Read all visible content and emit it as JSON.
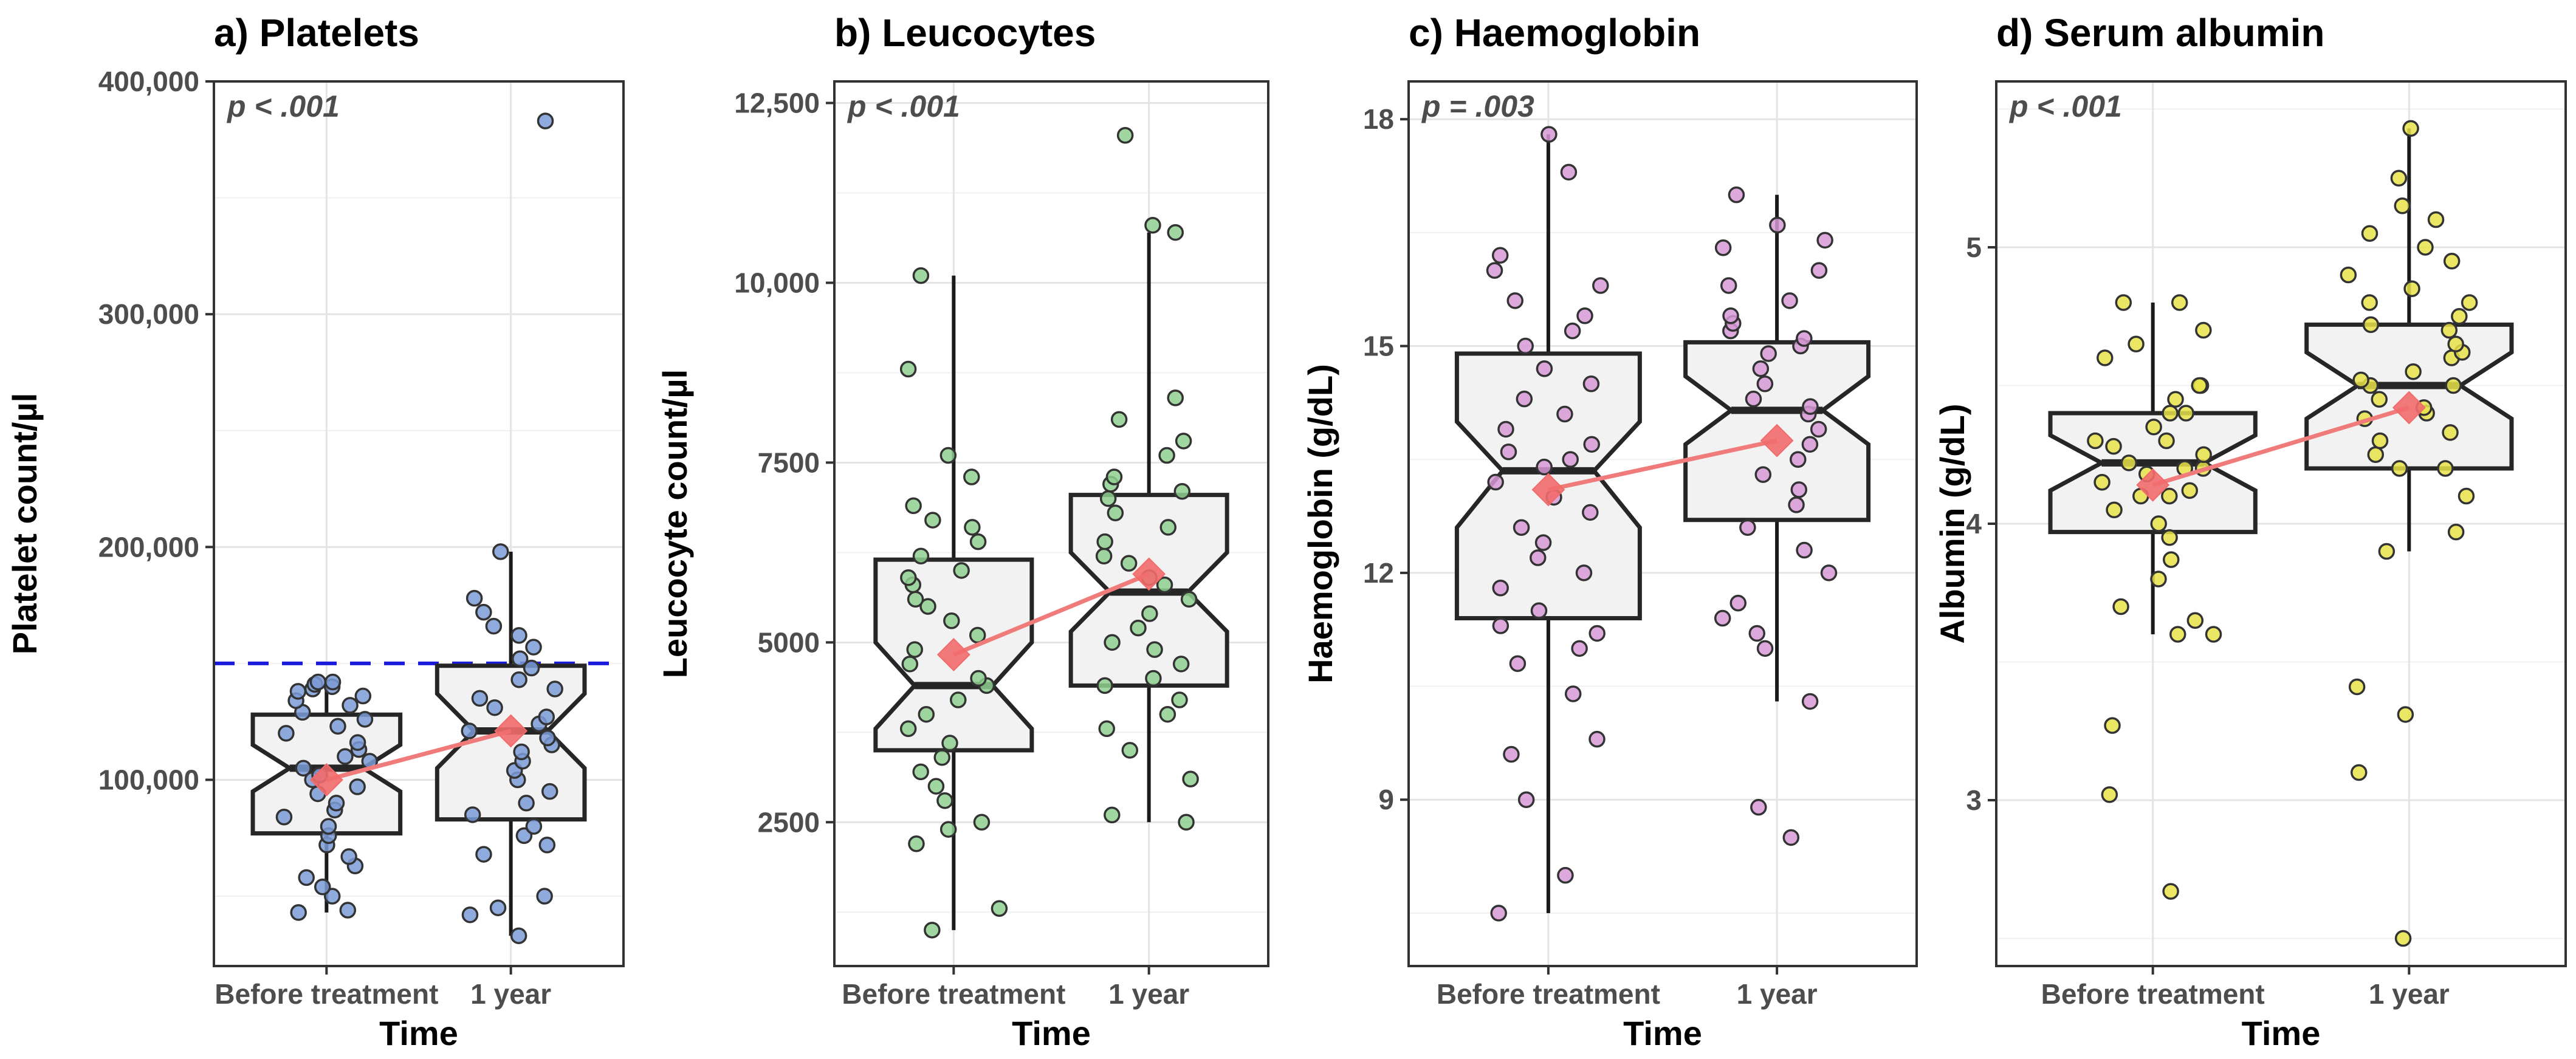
{
  "chart_data": [
    {
      "type": "boxplot",
      "title": "a) Platelets",
      "ylabel": "Platelet count/µl",
      "xlabel": "Time",
      "annotation": "p < .001",
      "categories": [
        "Before treatment",
        "1 year"
      ],
      "ylim": [
        20000,
        400000
      ],
      "yticks": [
        100000,
        200000,
        300000,
        400000
      ],
      "ytick_labels": [
        "100,000",
        "200,000",
        "300,000",
        "400,000"
      ],
      "reference_line": 150000,
      "reference_color": "#1a1adb",
      "point_color": "#7b9bd6",
      "boxes": [
        {
          "q1": 77000,
          "median": 105000,
          "q3": 128000,
          "notch_low": 95000,
          "notch_high": 115000,
          "whisker_low": 43000,
          "whisker_high": 142000,
          "mean": 100000
        },
        {
          "q1": 83000,
          "median": 121000,
          "q3": 149000,
          "notch_low": 105000,
          "notch_high": 137000,
          "whisker_low": 33000,
          "whisker_high": 198000,
          "mean": 121000
        }
      ],
      "points": [
        [
          43000,
          44000,
          50000,
          54000,
          58000,
          63000,
          67000,
          72000,
          76000,
          80000,
          84000,
          87000,
          90000,
          94000,
          97000,
          100000,
          102000,
          105000,
          108000,
          110000,
          113000,
          116000,
          120000,
          123000,
          126000,
          129000,
          132000,
          134000,
          136000,
          138000,
          139000,
          140000,
          141000,
          142000,
          142000
        ],
        [
          33000,
          42000,
          45000,
          50000,
          68000,
          72000,
          76000,
          80000,
          85000,
          90000,
          95000,
          100000,
          104000,
          108000,
          112000,
          115000,
          118000,
          121000,
          124000,
          127000,
          131000,
          135000,
          139000,
          143000,
          148000,
          152000,
          157000,
          162000,
          166000,
          172000,
          178000,
          198000,
          383000
        ]
      ]
    },
    {
      "type": "boxplot",
      "title": "b) Leucocytes",
      "ylabel": "Leucocyte count/µl",
      "xlabel": "Time",
      "annotation": "p < .001",
      "categories": [
        "Before treatment",
        "1 year"
      ],
      "ylim": [
        500,
        12800
      ],
      "yticks": [
        2500,
        5000,
        7500,
        10000,
        12500
      ],
      "ytick_labels": [
        "2500",
        "5000",
        "7500",
        "10,000",
        "12,500"
      ],
      "point_color": "#8fd08f",
      "boxes": [
        {
          "q1": 3500,
          "median": 4400,
          "q3": 6150,
          "notch_low": 3800,
          "notch_high": 5000,
          "whisker_low": 1000,
          "whisker_high": 10100,
          "mean": 4830
        },
        {
          "q1": 4400,
          "median": 5700,
          "q3": 7050,
          "notch_low": 5150,
          "notch_high": 6250,
          "whisker_low": 2500,
          "whisker_high": 10700,
          "mean": 5950
        }
      ],
      "points": [
        [
          1000,
          1300,
          2200,
          2400,
          2500,
          2800,
          3000,
          3200,
          3400,
          3600,
          3800,
          4000,
          4200,
          4400,
          4500,
          4700,
          4900,
          5100,
          5300,
          5500,
          5600,
          5800,
          5900,
          6000,
          6200,
          6400,
          6600,
          6700,
          6900,
          7300,
          7600,
          8800,
          10100
        ],
        [
          2500,
          2600,
          3100,
          3500,
          3800,
          4000,
          4200,
          4400,
          4500,
          4700,
          4900,
          5000,
          5200,
          5400,
          5600,
          5800,
          5900,
          6100,
          6200,
          6400,
          6600,
          6800,
          7000,
          7100,
          7200,
          7300,
          7600,
          7800,
          8100,
          8400,
          10700,
          10800,
          12050
        ]
      ]
    },
    {
      "type": "boxplot",
      "title": "c) Haemoglobin",
      "ylabel": "Haemoglobin (g/dL)",
      "xlabel": "Time",
      "annotation": "p = .003",
      "categories": [
        "Before treatment",
        "1 year"
      ],
      "ylim": [
        6.8,
        18.5
      ],
      "yticks": [
        9,
        12,
        15,
        18
      ],
      "ytick_labels": [
        "9",
        "12",
        "15",
        "18"
      ],
      "point_color": "#d79ad6",
      "boxes": [
        {
          "q1": 11.4,
          "median": 13.35,
          "q3": 14.9,
          "notch_low": 12.6,
          "notch_high": 14.0,
          "whisker_low": 7.5,
          "whisker_high": 17.8,
          "mean": 13.1
        },
        {
          "q1": 12.7,
          "median": 14.15,
          "q3": 15.05,
          "notch_low": 13.7,
          "notch_high": 14.6,
          "whisker_low": 10.3,
          "whisker_high": 17.0,
          "mean": 13.75
        }
      ],
      "points": [
        [
          7.5,
          8.0,
          9.0,
          9.6,
          9.8,
          10.4,
          10.8,
          11.0,
          11.2,
          11.3,
          11.5,
          11.8,
          12.0,
          12.2,
          12.4,
          12.6,
          12.8,
          13.0,
          13.2,
          13.4,
          13.5,
          13.6,
          13.7,
          13.9,
          14.1,
          14.3,
          14.5,
          14.7,
          15.0,
          15.2,
          15.4,
          15.6,
          15.8,
          16.0,
          16.2,
          17.3,
          17.8
        ],
        [
          8.5,
          8.9,
          10.3,
          11.0,
          11.2,
          11.4,
          11.6,
          12.0,
          12.3,
          12.6,
          12.9,
          13.1,
          13.3,
          13.5,
          13.7,
          13.9,
          14.1,
          14.2,
          14.3,
          14.5,
          14.7,
          14.9,
          15.0,
          15.1,
          15.2,
          15.3,
          15.4,
          15.6,
          15.8,
          16.0,
          16.3,
          16.4,
          16.6,
          17.0
        ]
      ]
    },
    {
      "type": "boxplot",
      "title": "d) Serum albumin",
      "ylabel": "Albumin (g/dL)",
      "xlabel": "Time",
      "annotation": "p < .001",
      "categories": [
        "Before treatment",
        "1 year"
      ],
      "ylim": [
        2.4,
        5.6
      ],
      "yticks": [
        3,
        4,
        5
      ],
      "ytick_labels": [
        "3",
        "4",
        "5"
      ],
      "point_color": "#e8e34a",
      "boxes": [
        {
          "q1": 3.97,
          "median": 4.22,
          "q3": 4.4,
          "notch_low": 4.12,
          "notch_high": 4.32,
          "whisker_low": 3.6,
          "whisker_high": 4.8,
          "mean": 4.14
        },
        {
          "q1": 4.2,
          "median": 4.5,
          "q3": 4.72,
          "notch_low": 4.38,
          "notch_high": 4.62,
          "whisker_low": 3.9,
          "whisker_high": 5.43,
          "mean": 4.42
        }
      ],
      "points": [
        [
          2.67,
          3.02,
          3.27,
          3.6,
          3.6,
          3.65,
          3.7,
          3.8,
          3.87,
          3.95,
          4.0,
          4.05,
          4.1,
          4.1,
          4.12,
          4.15,
          4.18,
          4.2,
          4.2,
          4.22,
          4.25,
          4.28,
          4.3,
          4.3,
          4.35,
          4.4,
          4.4,
          4.45,
          4.5,
          4.5,
          4.6,
          4.65,
          4.7,
          4.8,
          4.8
        ],
        [
          2.5,
          3.1,
          3.31,
          3.41,
          3.9,
          3.97,
          4.1,
          4.2,
          4.2,
          4.25,
          4.3,
          4.33,
          4.38,
          4.4,
          4.42,
          4.45,
          4.5,
          4.5,
          4.52,
          4.55,
          4.6,
          4.62,
          4.65,
          4.7,
          4.72,
          4.75,
          4.8,
          4.8,
          4.85,
          4.9,
          4.95,
          5.0,
          5.05,
          5.1,
          5.15,
          5.25,
          5.43
        ]
      ]
    }
  ]
}
